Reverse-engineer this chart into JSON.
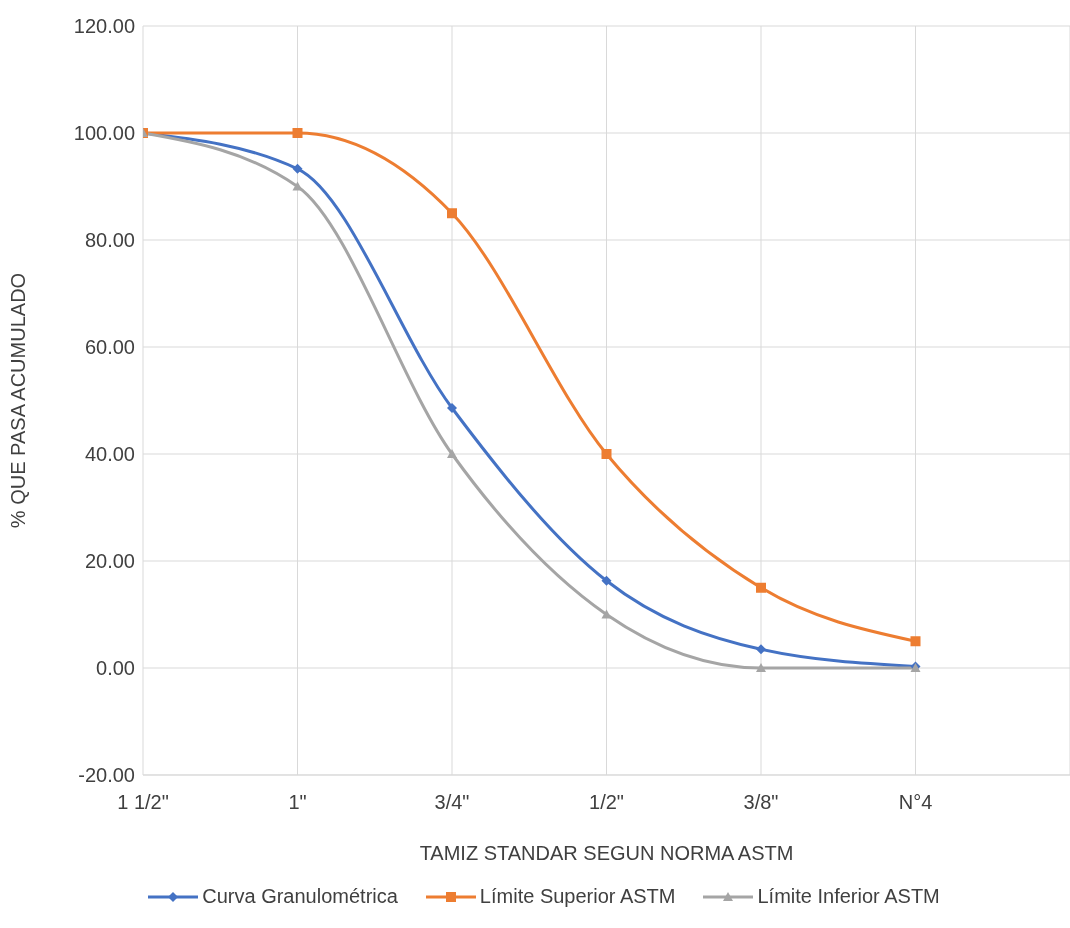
{
  "chart_data": {
    "type": "line",
    "xlabel": "TAMIZ STANDAR SEGUN NORMA ASTM",
    "ylabel": "% QUE PASA ACUMULADO",
    "categories": [
      "1 1/2\"",
      "1\"",
      "3/4\"",
      "1/2\"",
      "3/8\"",
      "N°4"
    ],
    "series": [
      {
        "name": "Curva Granulométrica",
        "color": "#4472c4",
        "marker": "diamond",
        "values": [
          100,
          93.3,
          48.6,
          16.3,
          3.5,
          0.3
        ]
      },
      {
        "name": "Límite Superior ASTM",
        "color": "#ed7d31",
        "marker": "square",
        "values": [
          100,
          100,
          85,
          40,
          15,
          5
        ]
      },
      {
        "name": "Límite Inferior ASTM",
        "color": "#a5a5a5",
        "marker": "triangle",
        "values": [
          100,
          90,
          40,
          10,
          0,
          0
        ]
      }
    ],
    "ylim": [
      -20,
      120
    ],
    "yticks": [
      {
        "value": -20,
        "label": "-20.00"
      },
      {
        "value": 0,
        "label": "0.00"
      },
      {
        "value": 20,
        "label": "20.00"
      },
      {
        "value": 40,
        "label": "40.00"
      },
      {
        "value": 60,
        "label": "60.00"
      },
      {
        "value": 80,
        "label": "80.00"
      },
      {
        "value": 100,
        "label": "100.00"
      },
      {
        "value": 120,
        "label": "120.00"
      }
    ],
    "grid": true,
    "legend": "bottom",
    "line_style": "solid"
  }
}
